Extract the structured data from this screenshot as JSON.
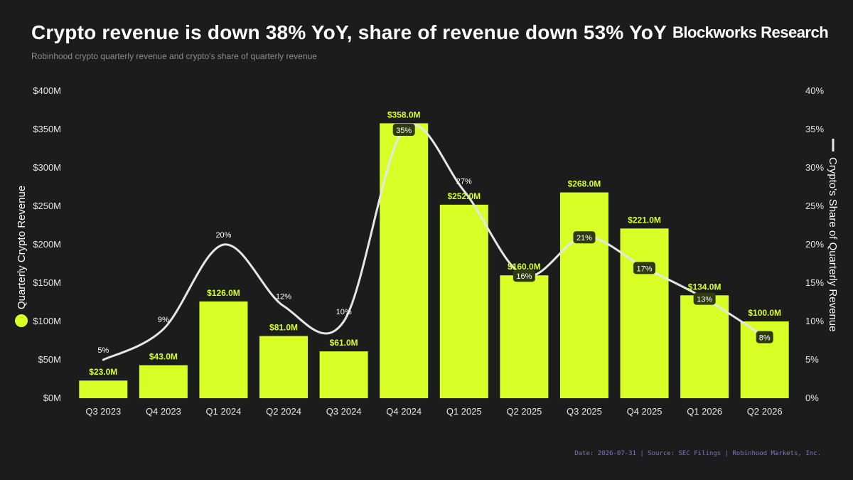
{
  "header": {
    "title": "Crypto revenue is down 38% YoY, share of revenue down 53% YoY",
    "brand": "Blockworks Research",
    "subtitle": "Robinhood crypto quarterly revenue and crypto's share of quarterly revenue"
  },
  "footer": {
    "text": "Date: 2026-07-31  |  Source: SEC Filings | Robinhood Markets, Inc."
  },
  "colors": {
    "background": "#1c1c1c",
    "bar": "#d8ff26",
    "line": "#e6e6e6",
    "label_box": "#2f3a12"
  },
  "chart_data": {
    "type": "bar",
    "categories": [
      "Q3 2023",
      "Q4 2023",
      "Q1 2024",
      "Q2 2024",
      "Q3 2024",
      "Q4 2024",
      "Q1 2025",
      "Q2 2025",
      "Q3 2025",
      "Q4 2025",
      "Q1 2026",
      "Q2 2026"
    ],
    "series": [
      {
        "name": "Quarterly Crypto Revenue",
        "type": "bar",
        "axis": "left",
        "values": [
          23.0,
          43.0,
          126.0,
          81.0,
          61.0,
          358.0,
          252.0,
          160.0,
          268.0,
          221.0,
          134.0,
          100.0
        ],
        "labels": [
          "$23.0M",
          "$43.0M",
          "$126.0M",
          "$81.0M",
          "$61.0M",
          "$358.0M",
          "$252.0M",
          "$160.0M",
          "$268.0M",
          "$221.0M",
          "$134.0M",
          "$100.0M"
        ]
      },
      {
        "name": "Crypto's Share of Quarterly Revenue",
        "type": "line",
        "axis": "right",
        "values": [
          5,
          9,
          20,
          12,
          10,
          35,
          27,
          16,
          21,
          17,
          13,
          8
        ],
        "labels": [
          "5%",
          "9%",
          "20%",
          "12%",
          "10%",
          "35%",
          "27%",
          "16%",
          "21%",
          "17%",
          "13%",
          "8%"
        ],
        "boxed": [
          false,
          false,
          false,
          false,
          false,
          true,
          false,
          true,
          true,
          true,
          true,
          true
        ]
      }
    ],
    "ylabel": "Quarterly Crypto Revenue",
    "y2label": "Crypto's Share of Quarterly Revenue",
    "ylim": [
      0,
      400
    ],
    "y2lim": [
      0,
      40
    ],
    "yticks": [
      "$0M",
      "$50M",
      "$100M",
      "$150M",
      "$200M",
      "$250M",
      "$300M",
      "$350M",
      "$400M"
    ],
    "y2ticks": [
      "0%",
      "5%",
      "10%",
      "15%",
      "20%",
      "25%",
      "30%",
      "35%",
      "40%"
    ],
    "grid": false
  }
}
